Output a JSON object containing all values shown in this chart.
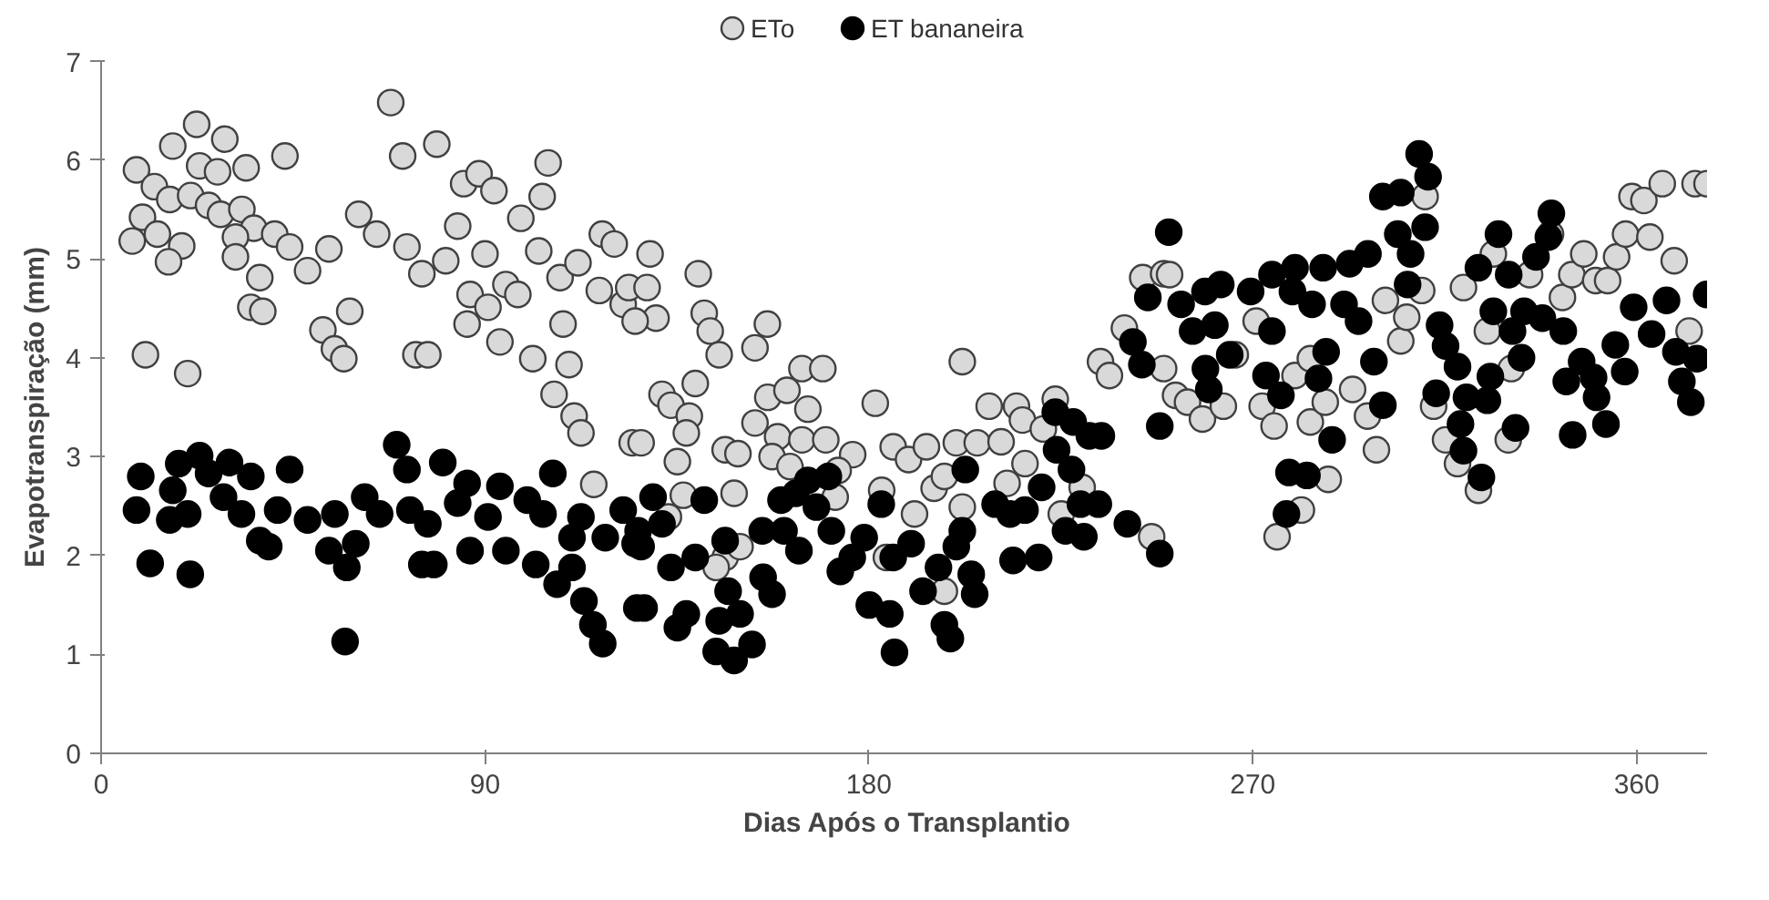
{
  "chart_data": {
    "type": "scatter",
    "xlabel": "Dias Após o Transplantio",
    "ylabel": "Evapotranspiração (mm)",
    "xlim": [
      0,
      378
    ],
    "ylim": [
      0,
      7
    ],
    "xticks": [
      0,
      90,
      180,
      270,
      360
    ],
    "yticks": [
      0,
      1,
      2,
      3,
      4,
      5,
      6,
      7
    ],
    "grid": false,
    "legend": "top",
    "marker": "circle",
    "series": [
      {
        "name": "ETo",
        "color": "#d9d9d9",
        "x": [
          8.3,
          16.8,
          22.4,
          29,
          34,
          43.1,
          23.1,
          27.3,
          12.5,
          16.1,
          21,
          25.2,
          28,
          33,
          35.8,
          9.7,
          7.3,
          13.2,
          18.9,
          15.8,
          31.5,
          31.5,
          37.2,
          40.7,
          44.2,
          48.4,
          53.4,
          35.1,
          37.9,
          10.4,
          20.3,
          52,
          54.7,
          56.9,
          58.3,
          60.4,
          64.6,
          67.9,
          70.7,
          78.7,
          71.7,
          75.2,
          80.8,
          83.6,
          73.8,
          76.6,
          85,
          88.6,
          92.1,
          90,
          86.5,
          85.8,
          90.7,
          94.9,
          97.7,
          93.5,
          101.2,
          98.4,
          103.4,
          104.8,
          102.6,
          107.6,
          111.8,
          108.3,
          109.7,
          106.2,
          110.9,
          112.5,
          117.5,
          120.3,
          116.8,
          122.4,
          123.7,
          124.5,
          115.5,
          128.7,
          128,
          130.1,
          125.2,
          140,
          141.4,
          142.8,
          144.9,
          153.3,
          156.2,
          139.3,
          131.5,
          133.6,
          137.9,
          137.2,
          126.6,
          135.1,
          136.5,
          133,
          148.4,
          146.3,
          149.3,
          153.3,
          156.3,
          160.8,
          164.3,
          169.2,
          165.7,
          158.6,
          164.3,
          169.9,
          176.2,
          157.3,
          161.5,
          172.1,
          172.8,
          146.3,
          149.8,
          144.2,
          181.5,
          184.1,
          185.7,
          189.3,
          193.5,
          195.3,
          197.7,
          200.5,
          201.9,
          201.9,
          205.4,
          208.2,
          211,
          214.6,
          216,
          212.4,
          216.6,
          220.9,
          223.7,
          197.7,
          190.7,
          183,
          225.1,
          230,
          234.3,
          236.4,
          239.9,
          244.2,
          246.3,
          249.1,
          250.5,
          249.1,
          251.9,
          254.7,
          258.2,
          263.1,
          265.9,
          270.8,
          272.2,
          275,
          279.9,
          283.5,
          283.5,
          287,
          287.7,
          281.4,
          275.7,
          293.4,
          296.9,
          299,
          301.1,
          304.7,
          306.1,
          309.6,
          310.4,
          312.4,
          315.2,
          318,
          322.9,
          319.4,
          325,
          326.4,
          330.6,
          329.9,
          334.9,
          339.8,
          342.6,
          344.8,
          347.6,
          350.4,
          353.2,
          355.3,
          357.4,
          358.9,
          361.7,
          363.1,
          366,
          368.8,
          372.3,
          373.7,
          376.5
        ],
        "values": [
          5.9,
          6.14,
          6.36,
          6.21,
          5.92,
          6.04,
          5.94,
          5.88,
          5.73,
          5.6,
          5.64,
          5.54,
          5.45,
          5.5,
          5.31,
          5.42,
          5.18,
          5.25,
          5.13,
          4.97,
          5.22,
          5.02,
          4.81,
          5.25,
          5.12,
          4.88,
          5.1,
          4.51,
          4.47,
          4.03,
          3.84,
          4.28,
          4.09,
          3.99,
          4.47,
          5.45,
          5.25,
          6.58,
          6.04,
          6.16,
          5.12,
          4.85,
          4.98,
          5.33,
          4.03,
          4.03,
          5.76,
          5.86,
          5.69,
          5.05,
          4.64,
          4.34,
          4.51,
          4.74,
          4.64,
          4.16,
          3.99,
          5.41,
          5.63,
          5.97,
          5.08,
          4.81,
          4.96,
          4.34,
          3.93,
          3.63,
          3.41,
          3.24,
          5.25,
          5.15,
          4.68,
          4.54,
          4.71,
          3.14,
          2.72,
          5.05,
          4.71,
          4.4,
          4.37,
          4.85,
          4.45,
          4.27,
          4.03,
          4.1,
          4.34,
          3.74,
          3.63,
          3.52,
          3.41,
          3.24,
          3.14,
          2.95,
          2.61,
          2.39,
          2.63,
          3.07,
          3.03,
          3.34,
          3.6,
          3.67,
          3.89,
          3.89,
          3.48,
          3.2,
          3.17,
          3.17,
          3.02,
          3.0,
          2.9,
          2.59,
          2.86,
          1.98,
          2.09,
          1.88,
          3.54,
          1.98,
          3.1,
          2.97,
          3.1,
          2.68,
          2.8,
          3.14,
          3.96,
          2.49,
          3.14,
          3.51,
          3.15,
          3.51,
          3.37,
          2.73,
          2.93,
          3.28,
          3.58,
          1.64,
          2.42,
          2.66,
          2.42,
          2.69,
          3.96,
          3.82,
          4.3,
          4.81,
          2.19,
          4.85,
          4.84,
          3.89,
          3.62,
          3.55,
          3.38,
          3.51,
          4.03,
          4.37,
          3.51,
          3.31,
          3.82,
          3.99,
          3.35,
          3.55,
          2.77,
          2.46,
          2.19,
          3.68,
          3.41,
          3.07,
          4.58,
          4.17,
          4.41,
          4.68,
          5.63,
          3.51,
          3.17,
          2.93,
          2.66,
          4.71,
          4.27,
          5.05,
          3.89,
          3.17,
          4.84,
          5.25,
          4.61,
          4.84,
          5.05,
          4.78,
          4.78,
          5.02,
          5.25,
          5.63,
          5.59,
          5.22,
          5.76,
          4.98,
          4.27,
          5.76,
          5.76
        ]
      },
      {
        "name": "ET bananeira",
        "color": "#000000",
        "x": [
          9.3,
          8.3,
          11.5,
          18.2,
          20.9,
          23.1,
          20.3,
          16.8,
          16.1,
          25.2,
          30.1,
          35.1,
          28.7,
          32.9,
          37.2,
          39.3,
          44.2,
          41.4,
          48.4,
          54.8,
          53.4,
          57.6,
          57.2,
          61.8,
          59.7,
          65.3,
          69.3,
          71.7,
          72.4,
          75.2,
          78,
          80.1,
          76.6,
          83.6,
          85.8,
          86.5,
          90.7,
          93.5,
          94.9,
          99.9,
          101.9,
          103.6,
          105.9,
          106.9,
          110.4,
          110.4,
          113.2,
          115.3,
          117.6,
          112.5,
          118.2,
          122.4,
          125.2,
          125.6,
          129.4,
          125.9,
          126.6,
          127.3,
          131.5,
          133.6,
          135.1,
          137.2,
          139.3,
          141.4,
          146.3,
          144.9,
          144.2,
          148.4,
          152.6,
          147,
          149.8,
          155.2,
          157.3,
          155,
          159.4,
          162.9,
          165.7,
          170.5,
          167.7,
          160.1,
          163.6,
          171.2,
          173.3,
          178.9,
          176.1,
          182.9,
          180.1,
          184.9,
          186,
          185.7,
          189.9,
          192.7,
          196.3,
          199.1,
          197.7,
          200.5,
          204,
          204.8,
          202.6,
          201.9,
          209.6,
          213.1,
          216.6,
          213.8,
          219.8,
          220.5,
          224,
          227.5,
          229.6,
          233.8,
          226.1,
          230.4,
          223.7,
          227.9,
          234.5,
          231.7,
          240.6,
          241.9,
          244,
          248.2,
          245.4,
          248.2,
          250.3,
          258.8,
          255.9,
          253.2,
          261.1,
          264.6,
          258.9,
          259.7,
          262.5,
          269.5,
          274.5,
          274.5,
          279.9,
          279.3,
          286.5,
          283.9,
          276.6,
          273.1,
          285.4,
          287.2,
          288.6,
          278.5,
          282.7,
          277.9,
          291.4,
          292.7,
          297,
          300.5,
          304.7,
          304,
          309,
          311.1,
          310.4,
          307,
          306.3,
          298.4,
          294.8,
          300.5,
          313.8,
          315.2,
          318,
          313,
          320.1,
          318.7,
          319.4,
          323.6,
          325,
          325.7,
          322.9,
          327.6,
          330,
          326.4,
          333,
          330.9,
          331.6,
          333.6,
          337.9,
          336.4,
          340,
          339.3,
          342.8,
          343.5,
          345,
          347.1,
          350.6,
          352.8,
          349.9,
          355,
          357.2,
          359.3,
          363.5,
          367,
          369.2,
          370.6,
          372.7,
          374.1,
          376.4
        ],
        "values": [
          2.8,
          2.46,
          1.92,
          2.93,
          1.81,
          3.01,
          2.42,
          2.66,
          2.36,
          2.83,
          2.94,
          2.8,
          2.59,
          2.42,
          2.15,
          2.09,
          2.87,
          2.46,
          2.36,
          2.42,
          2.05,
          1.88,
          1.13,
          2.59,
          2.12,
          2.42,
          3.12,
          2.87,
          2.46,
          1.91,
          1.91,
          2.94,
          2.32,
          2.53,
          2.73,
          2.05,
          2.39,
          2.7,
          2.05,
          2.56,
          1.91,
          2.42,
          2.83,
          1.71,
          1.88,
          2.18,
          1.54,
          1.3,
          1.11,
          2.39,
          2.18,
          2.46,
          2.12,
          1.47,
          2.59,
          2.25,
          2.09,
          1.47,
          2.32,
          1.88,
          1.27,
          1.41,
          1.98,
          2.56,
          2.15,
          1.34,
          1.03,
          0.94,
          1.1,
          1.64,
          1.41,
          1.78,
          1.61,
          2.25,
          2.56,
          2.63,
          2.76,
          2.8,
          2.49,
          2.25,
          2.05,
          2.25,
          1.84,
          2.18,
          1.98,
          2.52,
          1.5,
          1.41,
          1.02,
          1.98,
          2.12,
          1.64,
          1.88,
          1.16,
          1.3,
          2.09,
          1.81,
          1.61,
          2.87,
          2.25,
          2.52,
          2.42,
          2.46,
          1.95,
          1.98,
          2.69,
          3.07,
          2.87,
          2.52,
          2.52,
          2.25,
          2.19,
          3.45,
          3.35,
          3.21,
          3.21,
          2.32,
          4.16,
          3.93,
          3.31,
          4.61,
          2.02,
          5.27,
          4.67,
          4.27,
          4.54,
          4.33,
          4.03,
          3.89,
          3.68,
          4.74,
          4.67,
          4.27,
          4.84,
          4.91,
          4.67,
          4.91,
          4.54,
          3.62,
          3.82,
          3.79,
          4.06,
          3.17,
          2.84,
          2.81,
          2.42,
          4.54,
          4.95,
          5.05,
          5.63,
          5.67,
          5.25,
          6.06,
          5.83,
          5.32,
          5.05,
          4.74,
          3.96,
          4.37,
          3.52,
          4.33,
          4.12,
          3.91,
          3.64,
          3.6,
          3.33,
          3.06,
          2.79,
          3.57,
          3.81,
          4.91,
          5.25,
          4.84,
          4.47,
          4.0,
          4.27,
          3.29,
          4.47,
          4.4,
          5.02,
          5.46,
          5.22,
          4.27,
          3.76,
          3.22,
          3.96,
          3.6,
          3.33,
          3.8,
          4.13,
          3.86,
          4.51,
          4.24,
          4.58,
          4.06,
          3.76,
          3.55,
          3.99,
          4.64
        ]
      }
    ]
  }
}
